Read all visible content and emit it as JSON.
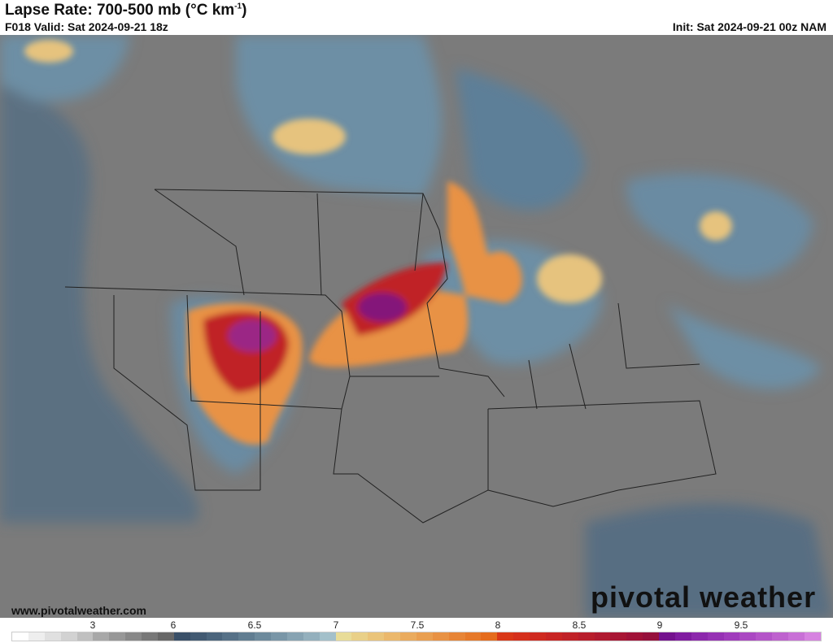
{
  "header": {
    "title": "Lapse Rate: 700-500 mb (°C km",
    "title_sup": "-1",
    "title_end": ")",
    "valid": "F018 Valid: Sat 2024-09-21 18z",
    "init": "Init: Sat 2024-09-21 00z NAM"
  },
  "footer": {
    "url": "www.pivotalweather.com",
    "logo": "pivotal weather"
  },
  "colorbar": {
    "labels": [
      "3",
      "6",
      "6.5",
      "7",
      "7.5",
      "8",
      "8.5",
      "9",
      "9.5"
    ],
    "colors": [
      "#ffffff",
      "#eeeeee",
      "#e0e0e0",
      "#d2d2d2",
      "#c0c0c0",
      "#a8a8a8",
      "#979797",
      "#888888",
      "#787878",
      "#676767",
      "#3a5068",
      "#425a72",
      "#4b657c",
      "#567187",
      "#617d91",
      "#6d8a9c",
      "#7996a7",
      "#87a3b2",
      "#94b0bd",
      "#a3c0ca",
      "#e8dc98",
      "#e9d088",
      "#eac47a",
      "#ebb86c",
      "#eaab5e",
      "#e99f51",
      "#e89244",
      "#e78537",
      "#e6792a",
      "#e56c1d",
      "#d93818",
      "#d5301c",
      "#cf2a20",
      "#c82524",
      "#c02228",
      "#b81e2c",
      "#b01a30",
      "#a81634",
      "#a01238",
      "#96103c",
      "#74128e",
      "#801ca0",
      "#8c28ac",
      "#9632b4",
      "#a03cbc",
      "#aa48c2",
      "#b454c8",
      "#be62ce",
      "#c870d6",
      "#d682e0"
    ],
    "accent_colors": {
      "background_gray": "#7b7b7b",
      "stable_blue": "#5a7890",
      "orange": "#e89244",
      "red": "#c02228",
      "purple": "#74128e"
    }
  }
}
